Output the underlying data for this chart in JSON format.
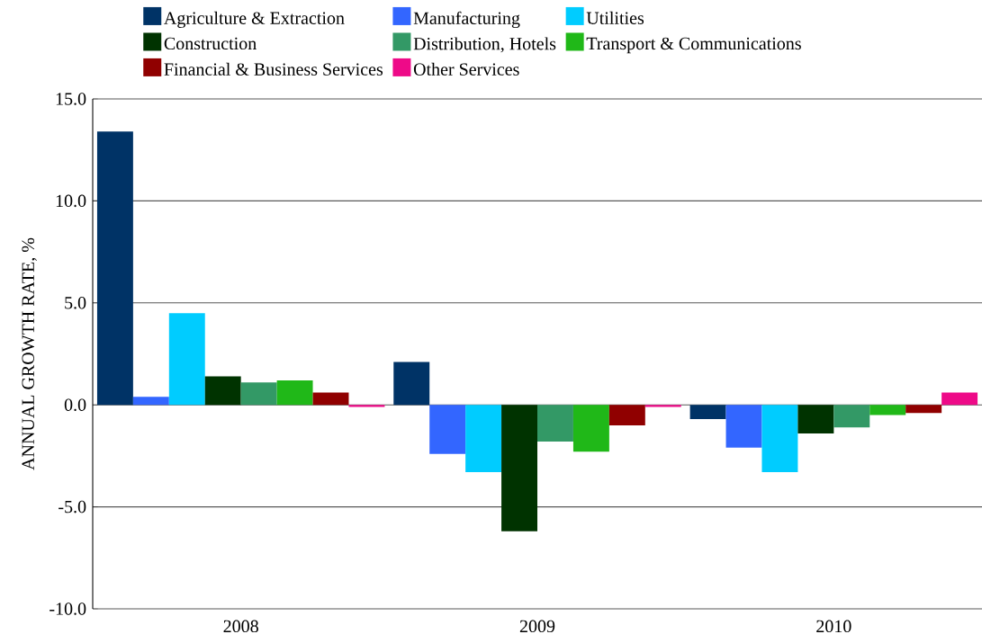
{
  "chart_data": {
    "type": "bar",
    "ylabel": "ANNUAL GROWTH RATE, %",
    "categories": [
      "2008",
      "2009",
      "2010"
    ],
    "series": [
      {
        "name": "Agriculture & Extraction",
        "color": "#003366",
        "values": [
          13.4,
          2.1,
          -0.7
        ]
      },
      {
        "name": "Manufacturing",
        "color": "#3366ff",
        "values": [
          0.4,
          -2.4,
          -2.1
        ]
      },
      {
        "name": "Utilities",
        "color": "#00ccff",
        "values": [
          4.5,
          -3.3,
          -3.3
        ]
      },
      {
        "name": "Construction",
        "color": "#003300",
        "values": [
          1.4,
          -6.2,
          -1.4
        ]
      },
      {
        "name": "Distribution, Hotels",
        "color": "#339966",
        "values": [
          1.1,
          -1.8,
          -1.1
        ]
      },
      {
        "name": "Transport & Communications",
        "color": "#20b818",
        "values": [
          1.2,
          -2.3,
          -0.5
        ]
      },
      {
        "name": "Financial & Business Services",
        "color": "#900000",
        "values": [
          0.6,
          -1.0,
          -0.4
        ]
      },
      {
        "name": "Other Services",
        "color": "#ee0a88",
        "values": [
          -0.1,
          -0.1,
          0.6
        ]
      }
    ],
    "ylim": [
      -10,
      15
    ],
    "yticks": [
      {
        "value": -10,
        "label": "-10.0"
      },
      {
        "value": -5,
        "label": "-5.0"
      },
      {
        "value": 0,
        "label": "0.0"
      },
      {
        "value": 5,
        "label": "5.0"
      },
      {
        "value": 10,
        "label": "10.0"
      },
      {
        "value": 15,
        "label": "15.0"
      }
    ],
    "grid": "y",
    "legend": "top"
  }
}
